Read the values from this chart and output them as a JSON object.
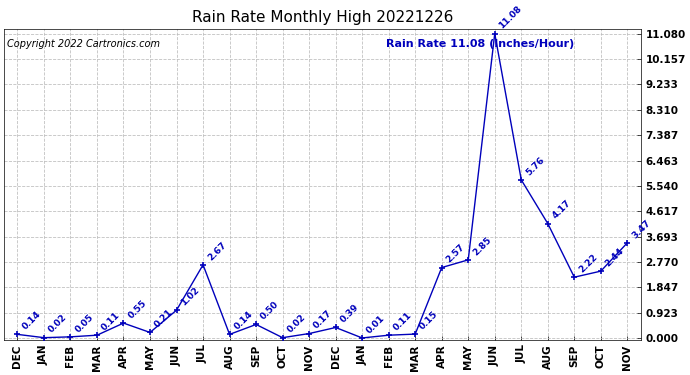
{
  "title": "Rain Rate Monthly High 20221226",
  "legend_label": "Rain Rate 11.08 (Inches/Hour)",
  "copyright": "Copyright 2022 Cartronics.com",
  "categories": [
    "DEC",
    "JAN",
    "FEB",
    "MAR",
    "APR",
    "MAY",
    "JUN",
    "JUL",
    "AUG",
    "SEP",
    "OCT",
    "NOV",
    "DEC",
    "JAN",
    "FEB",
    "MAR",
    "APR",
    "MAY",
    "JUN",
    "JUL",
    "AUG",
    "SEP",
    "OCT",
    "NOV"
  ],
  "values": [
    0.14,
    0.02,
    0.05,
    0.11,
    0.55,
    0.21,
    1.02,
    2.67,
    0.14,
    0.5,
    0.02,
    0.17,
    0.39,
    0.01,
    0.11,
    0.15,
    2.57,
    2.85,
    11.08,
    5.76,
    4.17,
    2.22,
    2.44,
    3.47
  ],
  "annotations": [
    "0.14",
    "0.02",
    "0.05",
    "0.11",
    "0.55",
    "0.21",
    "1.02",
    "2.67",
    "0.14",
    "0.50",
    "0.02",
    "0.17",
    "0.39",
    "0.01",
    "0.11",
    "0.15",
    "2.57",
    "2.85",
    "11.08",
    "5.76",
    "4.17",
    "2.22",
    "2.44",
    "3.47"
  ],
  "line_color": "#0000bb",
  "marker_color": "#0000bb",
  "bg_color": "#ffffff",
  "grid_color": "#bbbbbb",
  "title_color": "#000000",
  "legend_color": "#0000bb",
  "copyright_color": "#000000",
  "ymin": 0.0,
  "ymax": 11.08,
  "yticks": [
    0.0,
    0.923,
    1.847,
    2.77,
    3.693,
    4.617,
    5.54,
    6.463,
    7.387,
    8.31,
    9.233,
    10.157,
    11.08
  ]
}
